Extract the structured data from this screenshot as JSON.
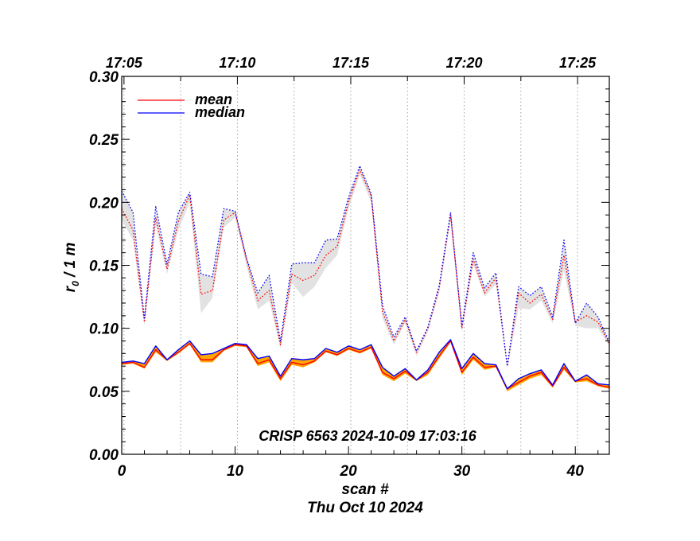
{
  "chart_data": {
    "type": "line",
    "title": "",
    "xlabel": "scan #",
    "xlabel2": "Thu Oct 10 2024",
    "ylabel": "r",
    "ylabel_sub": "0",
    "ylabel_rest": " / 1 m",
    "annotation": "CRISP 6563 2024-10-09 17:03:16",
    "xlim": [
      0,
      43
    ],
    "ylim": [
      0,
      0.3
    ],
    "xticks": [
      0,
      10,
      20,
      30,
      40
    ],
    "xtick_labels": [
      "0",
      "10",
      "20",
      "30",
      "40"
    ],
    "yticks": [
      0,
      0.05,
      0.1,
      0.15,
      0.2,
      0.25,
      0.3
    ],
    "ytick_labels": [
      "0.00",
      "0.05",
      "0.10",
      "0.15",
      "0.20",
      "0.25",
      "0.30"
    ],
    "top_axis": {
      "positions": [
        0.2,
        10.2,
        20.2,
        30.2,
        40.2
      ],
      "labels": [
        "17:05",
        "17:10",
        "17:15",
        "17:20",
        "17:25"
      ],
      "gridlines": [
        0.2,
        5.2,
        10.2,
        15.2,
        20.2,
        25.2,
        30.2,
        35.2,
        40.2
      ]
    },
    "legend": {
      "placement": "top-left",
      "entries": [
        "mean",
        "median"
      ]
    },
    "colors": {
      "mean": "#ff0000",
      "median": "#0000ff",
      "upper_band": "#e2e2e2",
      "lower_band": "#ffa500"
    },
    "x": [
      0,
      1,
      2,
      3,
      4,
      5,
      6,
      7,
      8,
      9,
      10,
      11,
      12,
      13,
      14,
      15,
      16,
      17,
      18,
      19,
      20,
      21,
      22,
      23,
      24,
      25,
      26,
      27,
      28,
      29,
      30,
      31,
      32,
      33,
      34,
      35,
      36,
      37,
      38,
      39,
      40,
      41,
      42,
      43
    ],
    "series": [
      {
        "name": "mean",
        "group": "upper",
        "values": [
          0.195,
          0.178,
          0.105,
          0.188,
          0.147,
          0.185,
          0.206,
          0.127,
          0.13,
          0.186,
          0.192,
          0.155,
          0.122,
          0.13,
          0.087,
          0.143,
          0.138,
          0.142,
          0.158,
          0.165,
          0.2,
          0.226,
          0.205,
          0.113,
          0.09,
          0.107,
          0.081,
          0.1,
          0.132,
          0.19,
          0.1,
          0.155,
          0.128,
          0.14,
          0.07,
          0.128,
          0.12,
          0.127,
          0.107,
          0.158,
          0.105,
          0.11,
          0.105,
          0.088
        ]
      },
      {
        "name": "median",
        "group": "upper",
        "values": [
          0.209,
          0.192,
          0.108,
          0.197,
          0.151,
          0.192,
          0.208,
          0.143,
          0.141,
          0.195,
          0.193,
          0.156,
          0.128,
          0.142,
          0.09,
          0.151,
          0.152,
          0.152,
          0.17,
          0.171,
          0.204,
          0.229,
          0.207,
          0.118,
          0.093,
          0.109,
          0.082,
          0.101,
          0.134,
          0.192,
          0.102,
          0.16,
          0.132,
          0.144,
          0.07,
          0.133,
          0.126,
          0.133,
          0.109,
          0.17,
          0.104,
          0.12,
          0.109,
          0.089
        ]
      },
      {
        "name": "mean",
        "group": "lower",
        "values": [
          0.072,
          0.073,
          0.069,
          0.083,
          0.075,
          0.081,
          0.088,
          0.075,
          0.075,
          0.083,
          0.087,
          0.086,
          0.072,
          0.075,
          0.06,
          0.073,
          0.071,
          0.074,
          0.082,
          0.079,
          0.084,
          0.081,
          0.085,
          0.065,
          0.06,
          0.066,
          0.059,
          0.065,
          0.078,
          0.09,
          0.065,
          0.077,
          0.069,
          0.07,
          0.052,
          0.057,
          0.062,
          0.065,
          0.054,
          0.069,
          0.058,
          0.06,
          0.055,
          0.053
        ]
      },
      {
        "name": "median",
        "group": "lower",
        "values": [
          0.073,
          0.074,
          0.072,
          0.086,
          0.075,
          0.083,
          0.09,
          0.079,
          0.08,
          0.084,
          0.088,
          0.087,
          0.076,
          0.078,
          0.062,
          0.076,
          0.075,
          0.076,
          0.084,
          0.081,
          0.086,
          0.083,
          0.087,
          0.069,
          0.062,
          0.068,
          0.059,
          0.067,
          0.081,
          0.091,
          0.068,
          0.08,
          0.072,
          0.071,
          0.052,
          0.06,
          0.064,
          0.067,
          0.055,
          0.072,
          0.058,
          0.063,
          0.056,
          0.055
        ]
      }
    ],
    "bands": [
      {
        "group": "upper",
        "low": [
          0.186,
          0.17,
          0.102,
          0.182,
          0.143,
          0.178,
          0.2,
          0.112,
          0.124,
          0.18,
          0.188,
          0.15,
          0.115,
          0.122,
          0.084,
          0.136,
          0.125,
          0.133,
          0.148,
          0.158,
          0.195,
          0.222,
          0.2,
          0.108,
          0.087,
          0.104,
          0.078,
          0.097,
          0.128,
          0.186,
          0.097,
          0.151,
          0.125,
          0.135,
          0.068,
          0.116,
          0.115,
          0.122,
          0.104,
          0.146,
          0.102,
          0.1,
          0.1,
          0.086
        ],
        "high": [
          0.209,
          0.192,
          0.108,
          0.197,
          0.151,
          0.192,
          0.208,
          0.143,
          0.141,
          0.195,
          0.193,
          0.156,
          0.128,
          0.142,
          0.09,
          0.151,
          0.152,
          0.152,
          0.17,
          0.171,
          0.204,
          0.229,
          0.207,
          0.118,
          0.093,
          0.109,
          0.082,
          0.101,
          0.134,
          0.192,
          0.102,
          0.16,
          0.132,
          0.144,
          0.07,
          0.133,
          0.126,
          0.133,
          0.109,
          0.17,
          0.105,
          0.12,
          0.109,
          0.089
        ]
      },
      {
        "group": "lower",
        "low": [
          0.071,
          0.072,
          0.068,
          0.081,
          0.074,
          0.08,
          0.087,
          0.073,
          0.073,
          0.082,
          0.086,
          0.085,
          0.07,
          0.073,
          0.058,
          0.071,
          0.069,
          0.073,
          0.081,
          0.078,
          0.083,
          0.08,
          0.084,
          0.063,
          0.058,
          0.064,
          0.058,
          0.063,
          0.076,
          0.089,
          0.063,
          0.075,
          0.067,
          0.069,
          0.05,
          0.055,
          0.06,
          0.063,
          0.053,
          0.067,
          0.057,
          0.058,
          0.054,
          0.052
        ],
        "high": [
          0.073,
          0.074,
          0.072,
          0.086,
          0.075,
          0.083,
          0.09,
          0.079,
          0.08,
          0.084,
          0.088,
          0.087,
          0.076,
          0.078,
          0.062,
          0.076,
          0.075,
          0.076,
          0.084,
          0.081,
          0.086,
          0.083,
          0.087,
          0.069,
          0.062,
          0.068,
          0.059,
          0.067,
          0.081,
          0.091,
          0.068,
          0.08,
          0.072,
          0.071,
          0.052,
          0.06,
          0.064,
          0.067,
          0.055,
          0.072,
          0.058,
          0.063,
          0.056,
          0.055
        ]
      }
    ]
  }
}
